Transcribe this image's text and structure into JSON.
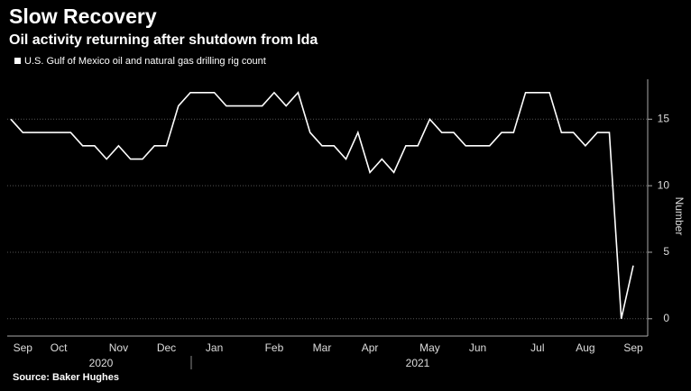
{
  "chart_data": {
    "type": "line",
    "title": "Slow Recovery",
    "subtitle": "Oil activity returning after shutdown from Ida",
    "source": "Source: Baker Hughes",
    "y_label": "Number",
    "categories": [
      null,
      "Sep",
      null,
      null,
      "Oct",
      null,
      null,
      null,
      null,
      "Nov",
      null,
      null,
      null,
      "Dec",
      null,
      null,
      null,
      "Jan",
      null,
      null,
      null,
      null,
      "Feb",
      null,
      null,
      null,
      "Mar",
      null,
      null,
      null,
      "Apr",
      null,
      null,
      null,
      null,
      "May",
      null,
      null,
      null,
      "Jun",
      null,
      null,
      null,
      null,
      "Jul",
      null,
      null,
      null,
      "Aug",
      null,
      null,
      null,
      "Sep"
    ],
    "years": [
      "2020",
      "2021"
    ],
    "series": [
      {
        "name": "U.S. Gulf of Mexico oil and natural gas drilling rig count",
        "color": "#ffffff",
        "values": [
          15,
          14,
          14,
          14,
          14,
          14,
          13,
          13,
          12,
          13,
          12,
          12,
          13,
          13,
          16,
          17,
          17,
          17,
          16,
          16,
          16,
          16,
          17,
          16,
          17,
          14,
          13,
          13,
          12,
          14,
          11,
          12,
          11,
          13,
          13,
          15,
          14,
          14,
          13,
          13,
          13,
          14,
          14,
          17,
          17,
          17,
          14,
          14,
          13,
          14,
          14,
          0,
          4
        ]
      }
    ],
    "ylim": [
      -1.3,
      18
    ],
    "yticks": [
      0,
      5,
      10,
      15
    ],
    "grid": true
  }
}
